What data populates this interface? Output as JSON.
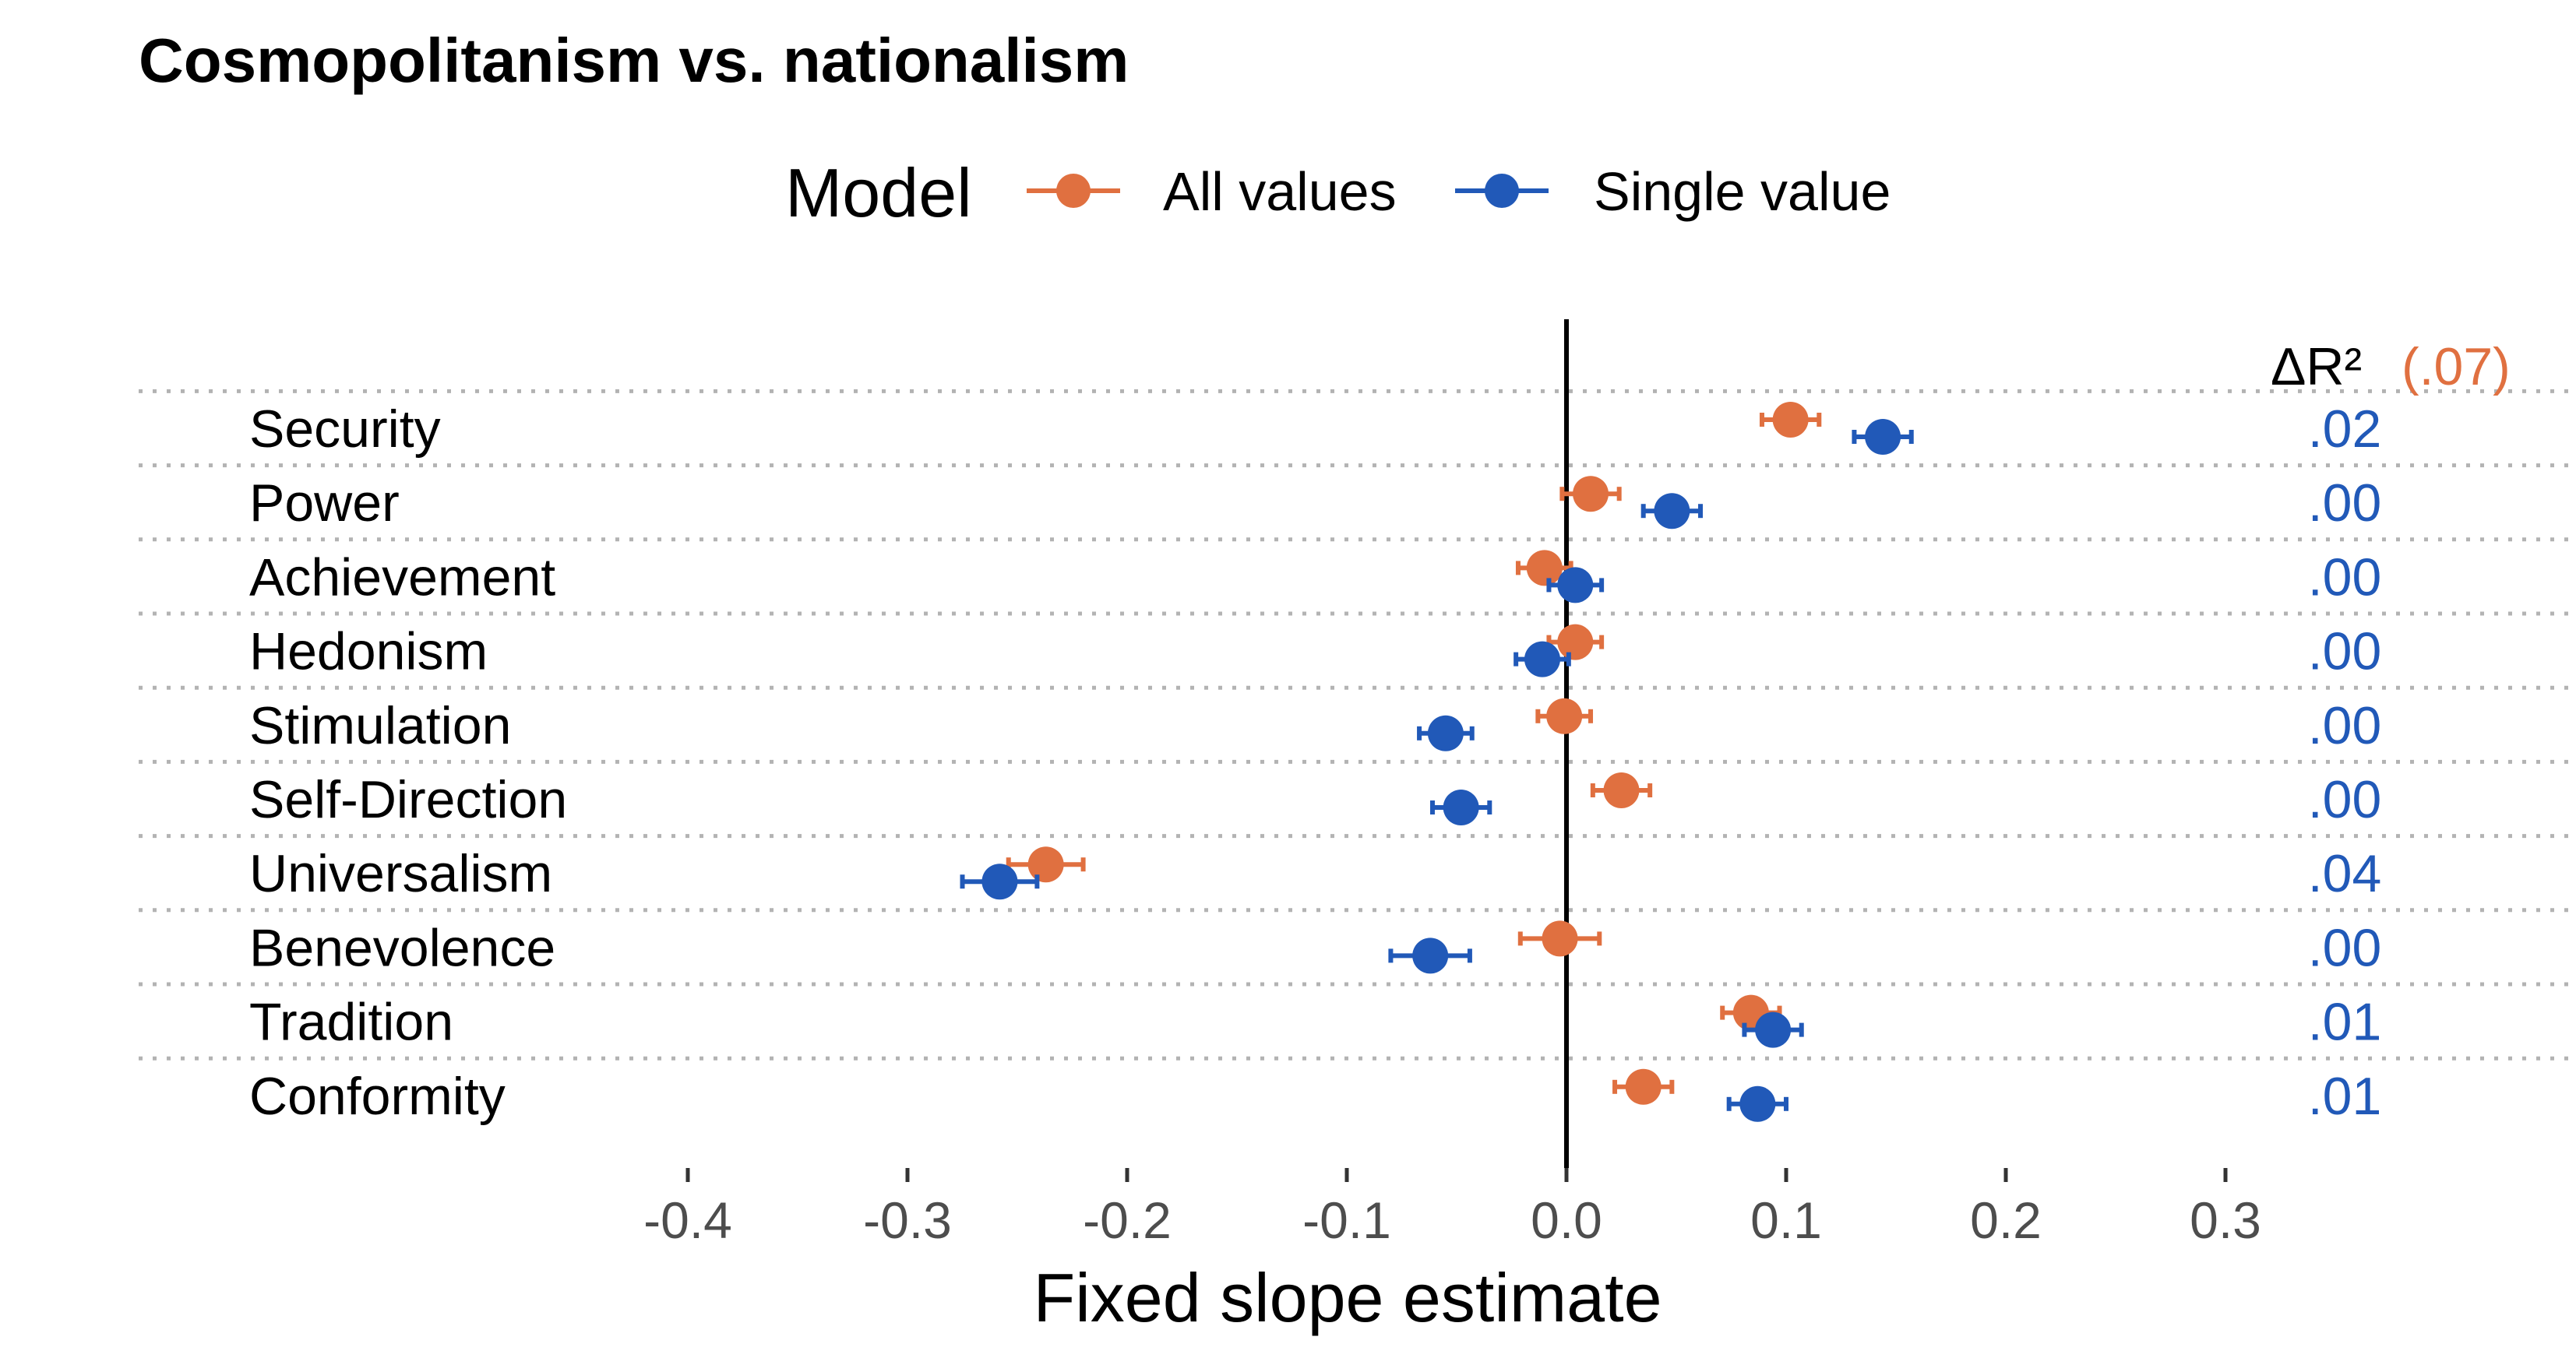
{
  "chart_data": {
    "type": "scatter",
    "title": "Cosmopolitanism vs. nationalism",
    "xlabel": "Fixed slope estimate",
    "ylabel": "",
    "xlim": [
      -0.4,
      0.3
    ],
    "x_ticks": [
      -0.4,
      -0.3,
      -0.2,
      -0.1,
      0.0,
      0.1,
      0.2,
      0.3
    ],
    "x_tick_labels": [
      "-0.4",
      "-0.3",
      "-0.2",
      "-0.1",
      "0.0",
      "0.1",
      "0.2",
      "0.3"
    ],
    "reference_line": 0.0,
    "grid": "horizontal dotted separators",
    "legend": {
      "title": "Model",
      "placement": "top-center",
      "entries": [
        "All values",
        "Single value"
      ]
    },
    "categories": [
      "Security",
      "Power",
      "Achievement",
      "Hedonism",
      "Stimulation",
      "Self-Direction",
      "Universalism",
      "Benevolence",
      "Tradition",
      "Conformity"
    ],
    "series": [
      {
        "name": "All values",
        "color": "#E07040",
        "values": [
          0.102,
          0.011,
          -0.01,
          0.004,
          -0.001,
          0.025,
          -0.237,
          -0.003,
          0.084,
          0.035
        ],
        "error": [
          0.013,
          0.013,
          0.012,
          0.012,
          0.012,
          0.013,
          0.017,
          0.018,
          0.013,
          0.013
        ]
      },
      {
        "name": "Single value",
        "color": "#2159B8",
        "values": [
          0.144,
          0.048,
          0.004,
          -0.011,
          -0.055,
          -0.048,
          -0.258,
          -0.062,
          0.094,
          0.087
        ],
        "error": [
          0.013,
          0.013,
          0.012,
          0.012,
          0.012,
          0.013,
          0.017,
          0.018,
          0.013,
          0.013
        ]
      }
    ],
    "delta_r2": {
      "header": "ΔR²",
      "total": "(.07)",
      "values": [
        ".02",
        ".00",
        ".00",
        ".00",
        ".00",
        ".00",
        ".04",
        ".00",
        ".01",
        ".01"
      ]
    }
  }
}
